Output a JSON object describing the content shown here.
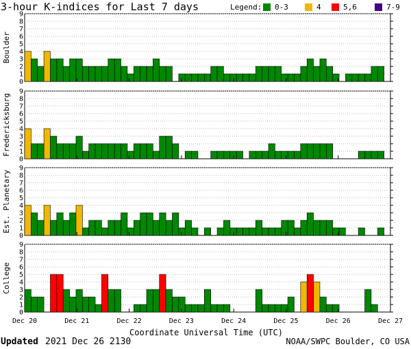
{
  "chart_data": {
    "type": "bar",
    "title": "3-hour K-indices for Last 7 days",
    "legend": {
      "label": "Legend:",
      "placement": "top-right",
      "entries": [
        {
          "label": "0-3",
          "color": "#008800"
        },
        {
          "label": "4",
          "color": "#f0b800"
        },
        {
          "label": "5,6",
          "color": "#ff0000"
        },
        {
          "label": "7-9",
          "color": "#440088"
        }
      ]
    },
    "xlabel": "Coordinate Universal Time (UTC)",
    "x_tick_labels": [
      "Dec 20",
      "Dec 21",
      "Dec 22",
      "Dec 23",
      "Dec 24",
      "Dec 25",
      "Dec 26",
      "Dec 27"
    ],
    "y_tick_labels": [
      "0",
      "1",
      "2",
      "3",
      "4",
      "5",
      "6",
      "7",
      "8",
      "9"
    ],
    "ylim": [
      0,
      9
    ],
    "grid": true,
    "series": [
      {
        "name": "Boulder",
        "values": [
          4,
          3,
          2,
          4,
          3,
          3,
          2,
          3,
          3,
          2,
          2,
          2,
          2,
          3,
          3,
          2,
          1,
          2,
          2,
          2,
          3,
          2,
          2,
          0,
          1,
          1,
          1,
          1,
          1,
          2,
          2,
          1,
          1,
          1,
          1,
          1,
          2,
          2,
          2,
          2,
          1,
          1,
          1,
          2,
          3,
          2,
          3,
          2,
          1,
          0,
          1,
          1,
          1,
          1,
          2,
          2,
          0
        ]
      },
      {
        "name": "Fredericksburg",
        "values": [
          4,
          2,
          2,
          4,
          3,
          2,
          2,
          2,
          3,
          1,
          2,
          2,
          2,
          2,
          2,
          2,
          1,
          2,
          2,
          2,
          1,
          3,
          3,
          2,
          0,
          1,
          1,
          0,
          0,
          1,
          1,
          1,
          1,
          1,
          0,
          1,
          1,
          1,
          2,
          1,
          1,
          1,
          1,
          2,
          2,
          2,
          2,
          2,
          0,
          0,
          0,
          0,
          1,
          1,
          1,
          1,
          0
        ]
      },
      {
        "name": "Est. Planetary",
        "values": [
          4,
          3,
          2,
          4,
          2,
          3,
          2,
          3,
          4,
          1,
          2,
          2,
          1,
          2,
          2,
          3,
          1,
          2,
          3,
          3,
          2,
          3,
          2,
          3,
          1,
          2,
          1,
          0,
          1,
          0,
          1,
          2,
          1,
          1,
          1,
          1,
          2,
          1,
          1,
          1,
          2,
          2,
          1,
          2,
          3,
          2,
          2,
          2,
          1,
          1,
          0,
          0,
          1,
          0,
          0,
          1,
          0
        ]
      },
      {
        "name": "College",
        "values": [
          3,
          2,
          2,
          0,
          5,
          5,
          3,
          2,
          3,
          2,
          2,
          1,
          5,
          3,
          3,
          0,
          0,
          1,
          1,
          3,
          3,
          5,
          3,
          2,
          2,
          1,
          1,
          1,
          3,
          1,
          1,
          1,
          0,
          0,
          0,
          0,
          3,
          1,
          1,
          1,
          1,
          2,
          0,
          4,
          5,
          4,
          2,
          1,
          1,
          0,
          0,
          0,
          0,
          3,
          1,
          0,
          0
        ]
      }
    ]
  },
  "footer": {
    "updated_label": "Updated",
    "updated_value": "2021 Dec 26 2130",
    "credit": "NOAA/SWPC Boulder, CO USA"
  }
}
